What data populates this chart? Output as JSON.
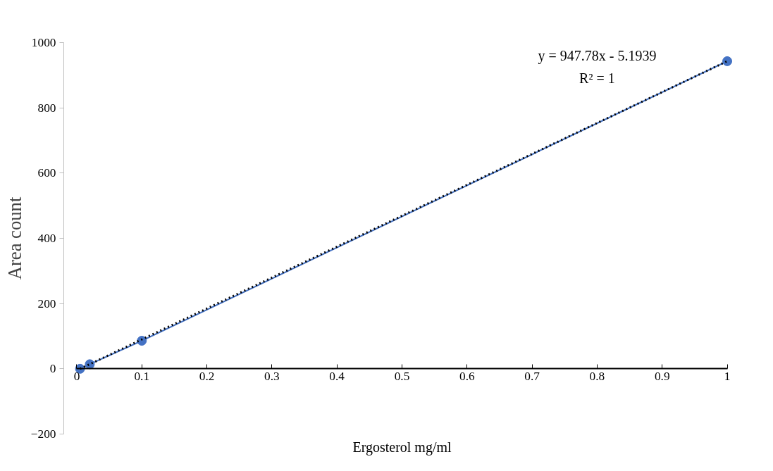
{
  "chart_data": {
    "type": "line",
    "xlabel": "Ergosterol mg/ml",
    "ylabel": "Area count",
    "xlim": [
      0,
      1
    ],
    "xticks": [
      0,
      0.1,
      0.2,
      0.3,
      0.4,
      0.5,
      0.6,
      0.7,
      0.8,
      0.9,
      1
    ],
    "ylim": [
      -200,
      1000
    ],
    "yticks": [
      -200,
      0,
      200,
      400,
      600,
      800,
      1000
    ],
    "grid": false,
    "marker": "circle",
    "series": [
      {
        "color": "#4472c4",
        "line_style": "solid",
        "x": [
          0.005,
          0.02,
          0.1,
          1
        ],
        "values": [
          0,
          14,
          86,
          943
        ]
      },
      {
        "type": "line",
        "color": "#000000",
        "marker": "none",
        "line_style": "dotted",
        "x": [
          0.005,
          1
        ],
        "values": [
          0,
          943
        ]
      }
    ],
    "annotations": [
      "y = 947.78x - 5.1939",
      "R² = 1"
    ]
  }
}
